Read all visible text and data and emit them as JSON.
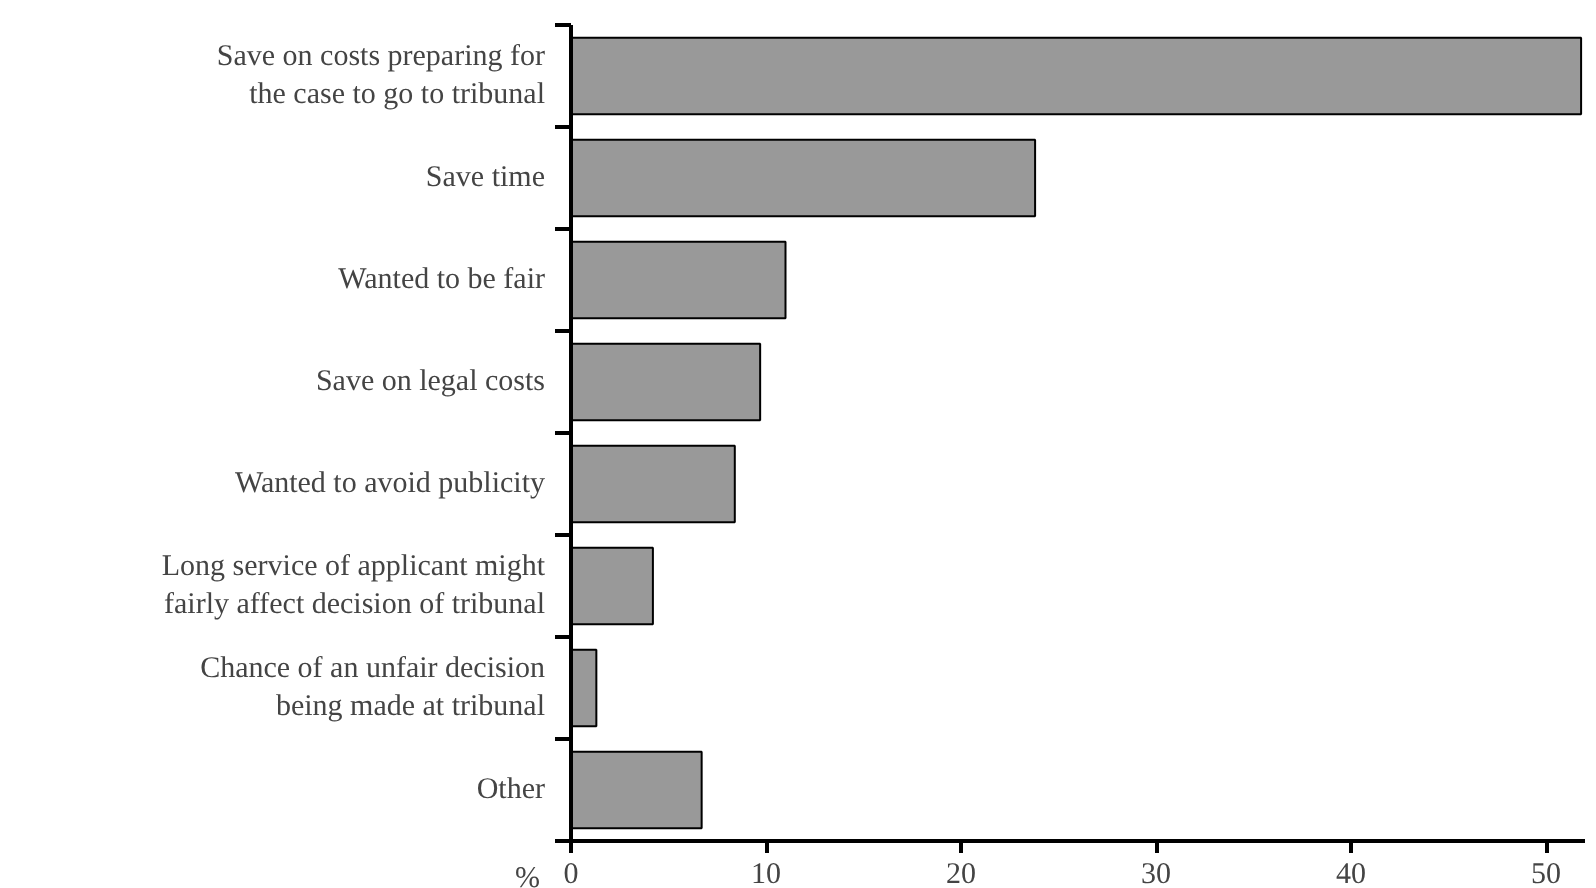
{
  "chart_data": {
    "type": "bar",
    "orientation": "horizontal",
    "xlabel": "%",
    "categories": [
      "Save on costs preparing for\nthe case to go to tribunal",
      "Save time",
      "Wanted to be fair",
      "Save on legal costs",
      "Wanted to avoid publicity",
      "Long service of applicant might\nfairly affect decision of tribunal",
      "Chance of an unfair decision\nbeing made at tribunal",
      "Other"
    ],
    "values": [
      51.8,
      23.8,
      11.0,
      9.7,
      8.4,
      4.2,
      1.3,
      6.7
    ],
    "color": "#999999",
    "xlim": [
      0,
      52
    ],
    "xticks": [
      0,
      10,
      20,
      30,
      40,
      50
    ],
    "grid": false
  }
}
